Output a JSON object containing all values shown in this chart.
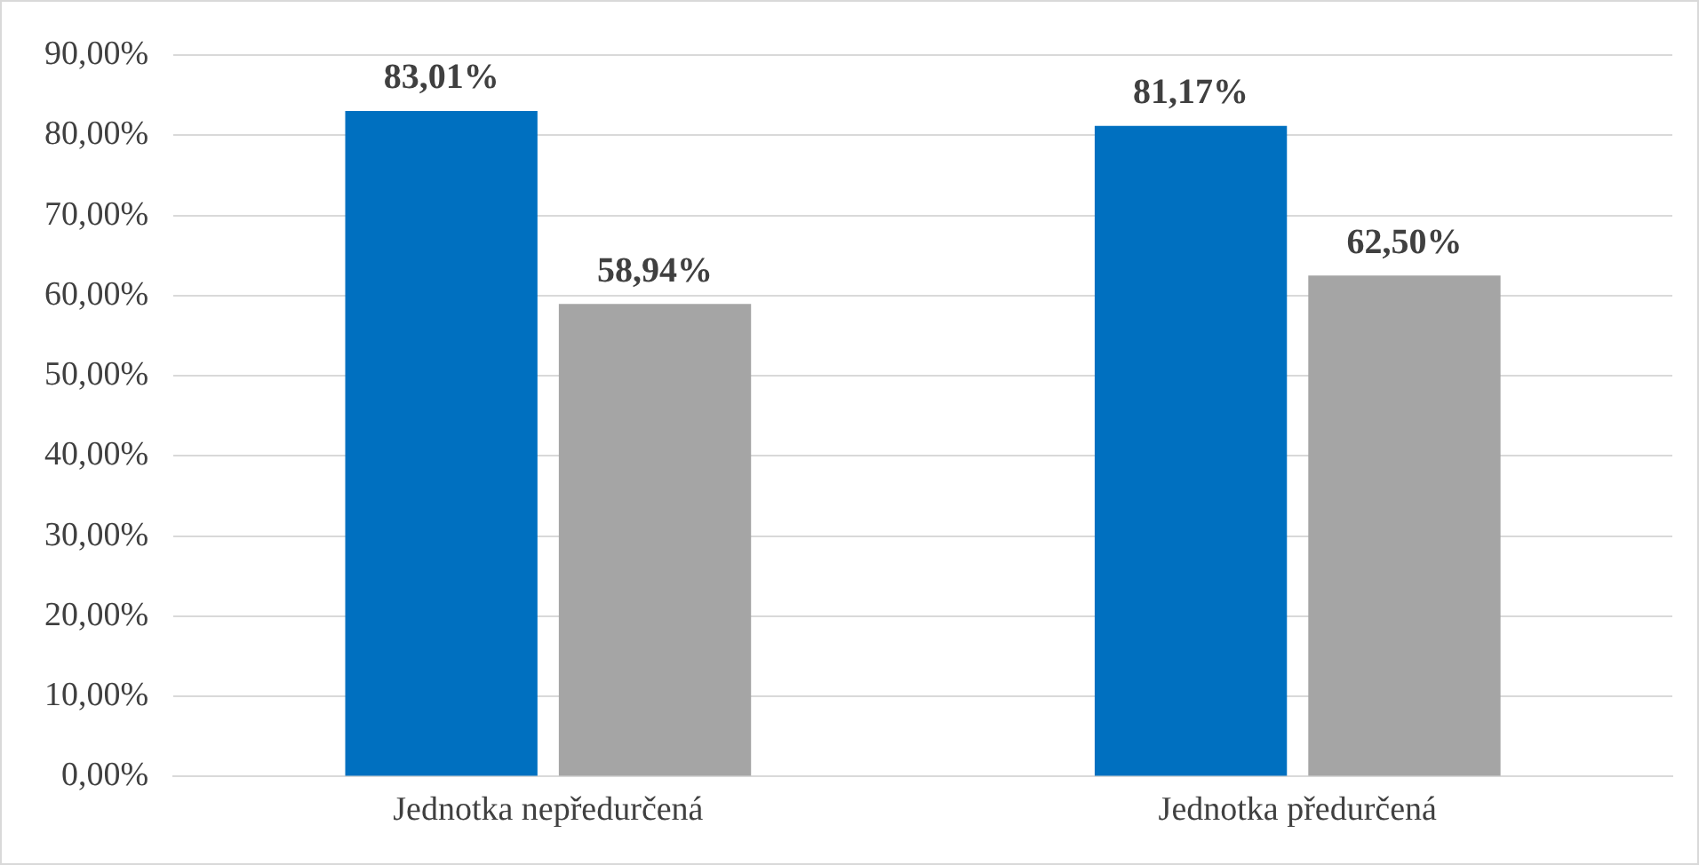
{
  "chart_data": {
    "type": "bar",
    "categories": [
      "Jednotka nepředurčená",
      "Jednotka předurčená"
    ],
    "series": [
      {
        "color": "#0070c0",
        "values": [
          83.01,
          81.17
        ],
        "value_labels": [
          "83,01%",
          "81,17%"
        ]
      },
      {
        "color": "#a5a5a5",
        "values": [
          58.94,
          62.5
        ],
        "value_labels": [
          "58,94%",
          "62,50%"
        ]
      }
    ],
    "ylim": [
      0,
      90
    ],
    "yticks": [
      {
        "value": 0,
        "label": "0,00%"
      },
      {
        "value": 10,
        "label": "10,00%"
      },
      {
        "value": 20,
        "label": "20,00%"
      },
      {
        "value": 30,
        "label": "30,00%"
      },
      {
        "value": 40,
        "label": "40,00%"
      },
      {
        "value": 50,
        "label": "50,00%"
      },
      {
        "value": 60,
        "label": "60,00%"
      },
      {
        "value": 70,
        "label": "70,00%"
      },
      {
        "value": 80,
        "label": "80,00%"
      },
      {
        "value": 90,
        "label": "90,00%"
      }
    ],
    "grid": "y",
    "legend": false
  }
}
